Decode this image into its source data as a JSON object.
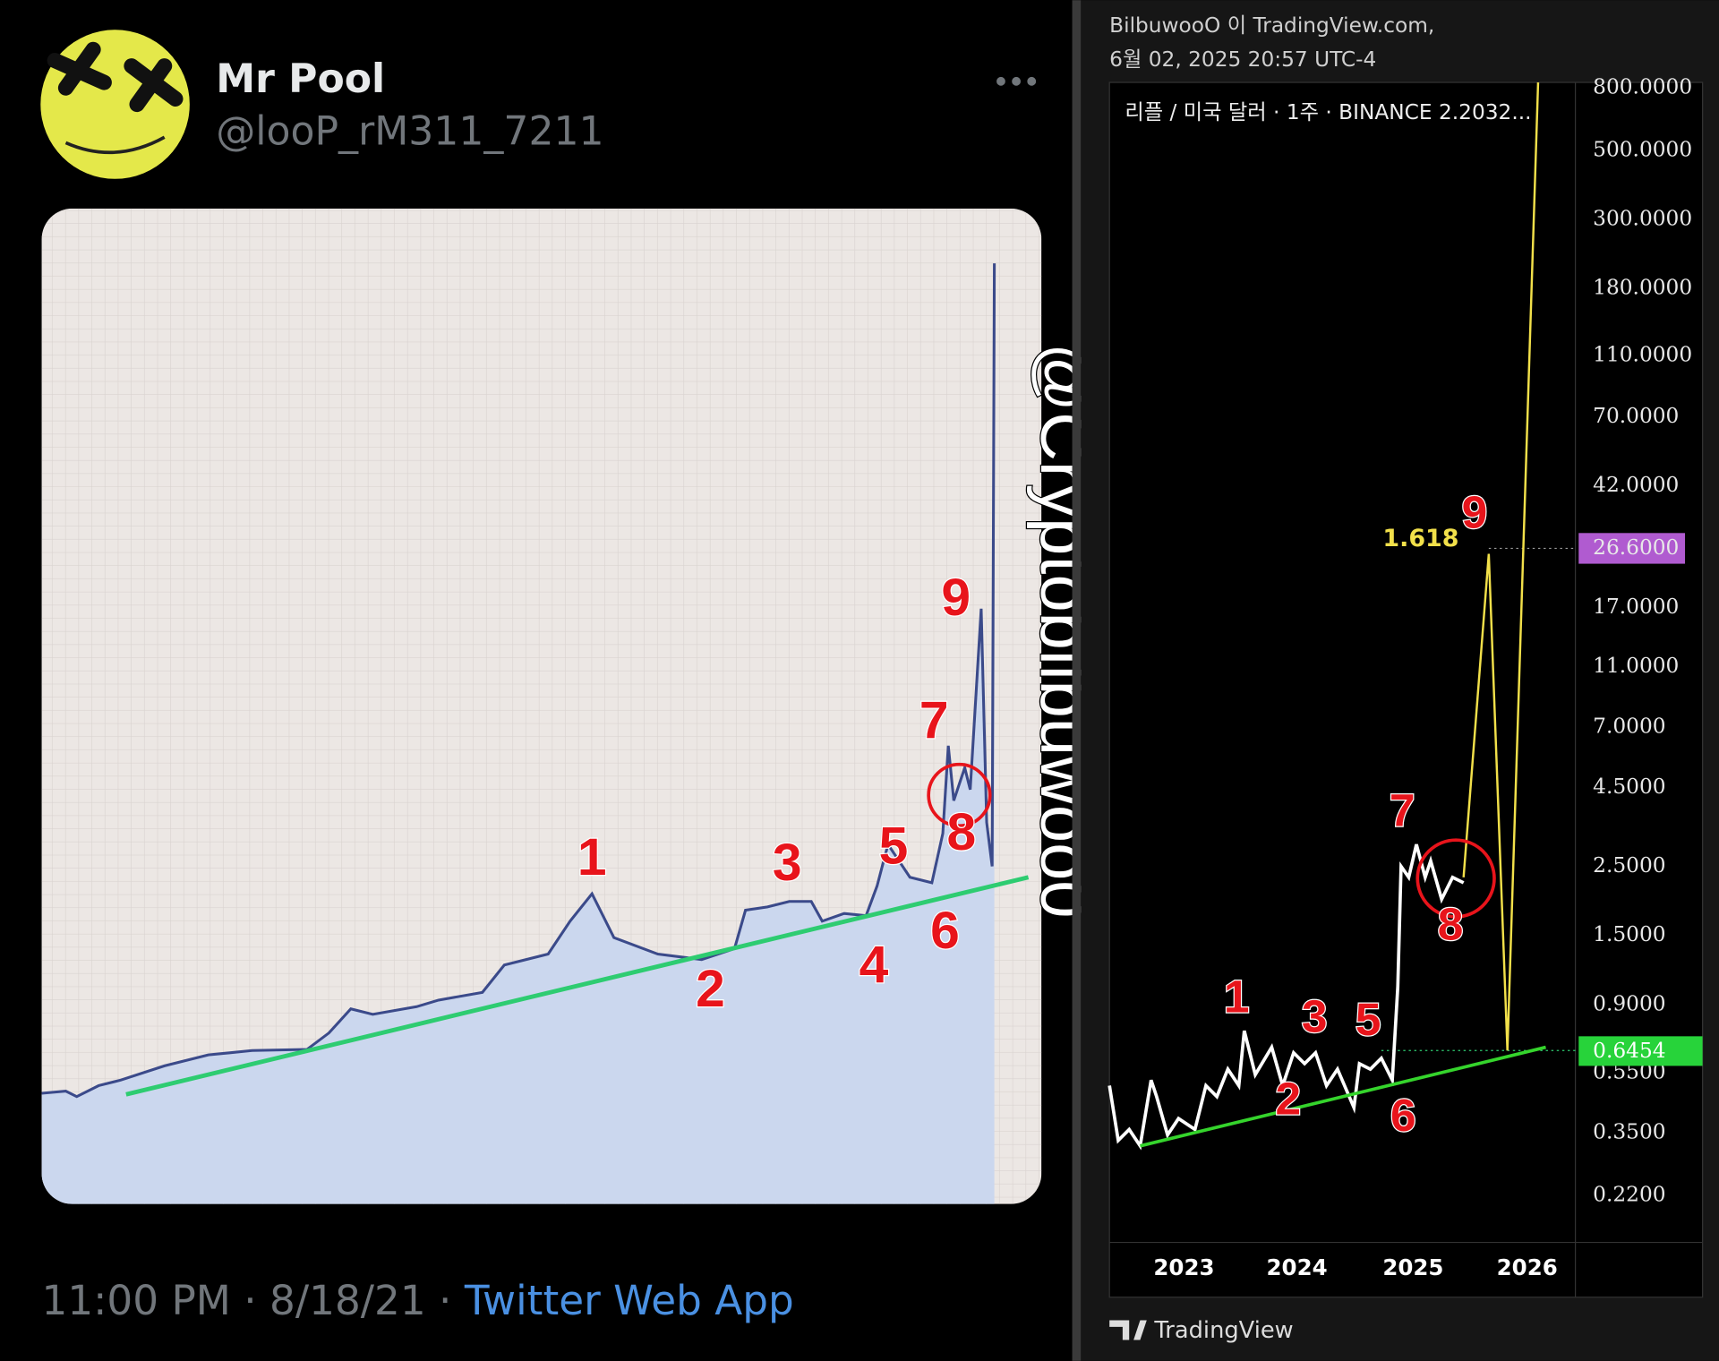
{
  "tweet": {
    "name": "Mr Pool",
    "handle": "@looP_rM311_7211",
    "time": "11:00 PM · 8/18/21 · ",
    "source": "Twitter Web App",
    "image": {
      "watermark": "@Cryptobilbuwoo0",
      "labels": [
        "1",
        "2",
        "3",
        "4",
        "5",
        "6",
        "7",
        "8",
        "9"
      ]
    }
  },
  "tradingview": {
    "header": [
      "BilbuwooO 이 TradingView.com,",
      "6월 02, 2025 20:57 UTC-4"
    ],
    "title": "리플 / 미국 달러 · 1주 · BINANCE  2.2032...",
    "yticks": [
      "800.0000",
      "500.0000",
      "300.0000",
      "180.0000",
      "110.0000",
      "70.0000",
      "42.0000",
      "17.0000",
      "11.0000",
      "7.0000",
      "4.5000",
      "2.5000",
      "1.5000",
      "0.9000",
      "0.5500",
      "0.3500",
      "0.2200"
    ],
    "target_label": "26.6000",
    "support_label": "0.6454",
    "fib_label": "1.618",
    "xticks": [
      "2023",
      "2024",
      "2025",
      "2026"
    ],
    "labels": [
      "1",
      "2",
      "3",
      "5",
      "6",
      "7",
      "8",
      "9"
    ],
    "brand": "TradingView"
  }
}
